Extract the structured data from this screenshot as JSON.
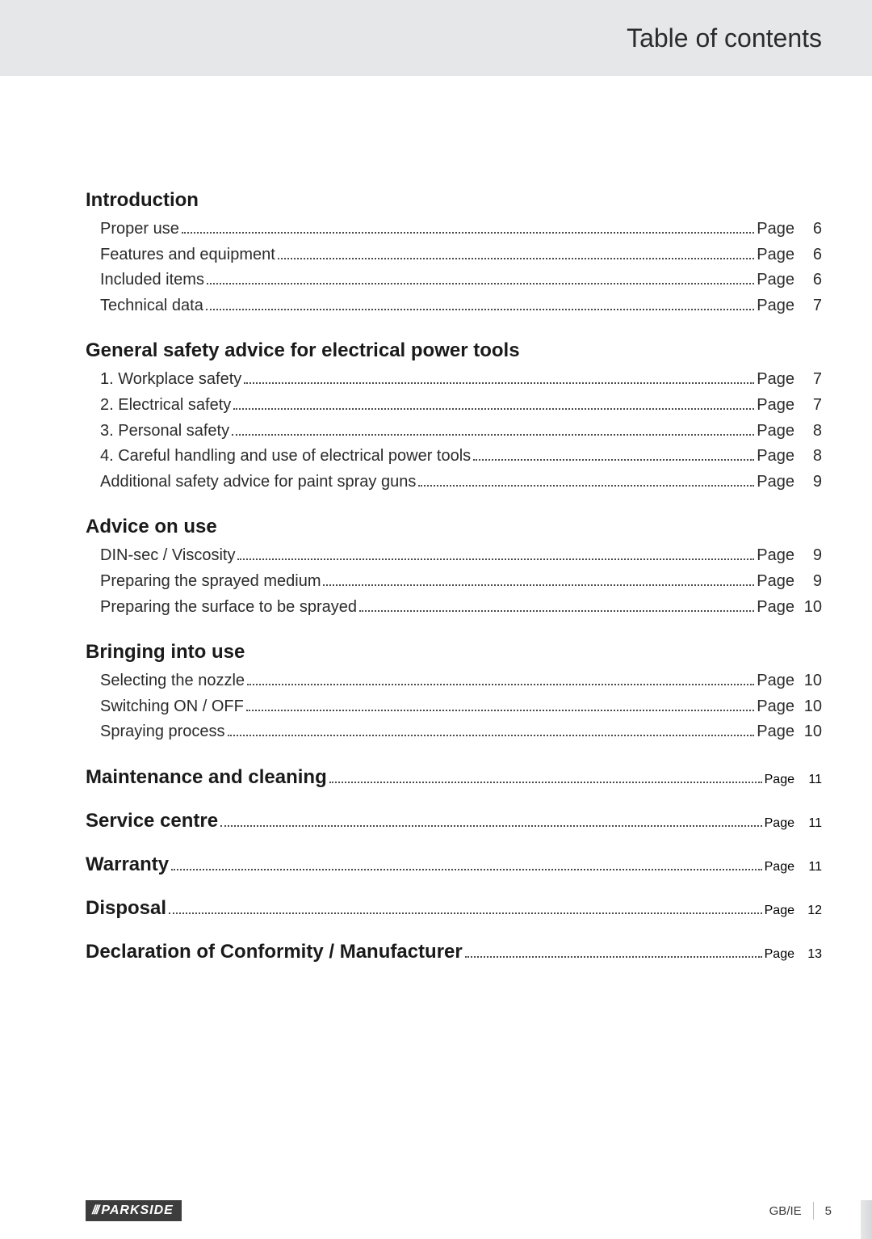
{
  "header": {
    "title": "Table of contents"
  },
  "page_word": "Page",
  "sections": {
    "intro": {
      "heading": "Introduction",
      "items": [
        {
          "label": "Proper use",
          "page": "6"
        },
        {
          "label": "Features and equipment",
          "page": "6"
        },
        {
          "label": "Included items",
          "page": "6"
        },
        {
          "label": "Technical data",
          "page": "7"
        }
      ]
    },
    "safety": {
      "heading": "General safety advice for electrical power tools",
      "items": [
        {
          "label": "1. Workplace safety",
          "page": "7"
        },
        {
          "label": "2. Electrical safety",
          "page": "7"
        },
        {
          "label": "3. Personal safety",
          "page": "8"
        },
        {
          "label": "4. Careful handling and use of electrical power tools",
          "page": "8"
        },
        {
          "label": "Additional safety advice for paint spray guns",
          "page": "9"
        }
      ]
    },
    "advice": {
      "heading": "Advice on use",
      "items": [
        {
          "label": "DIN-sec / Viscosity",
          "page": "9"
        },
        {
          "label": "Preparing the sprayed medium",
          "page": "9"
        },
        {
          "label": "Preparing the surface to be sprayed",
          "page": "10"
        }
      ]
    },
    "bringing": {
      "heading": "Bringing into use",
      "items": [
        {
          "label": "Selecting the nozzle",
          "page": "10"
        },
        {
          "label": "Switching ON / OFF",
          "page": "10"
        },
        {
          "label": "Spraying process",
          "page": "10"
        }
      ]
    },
    "maintenance": {
      "heading": "Maintenance and cleaning",
      "page": "11"
    },
    "service": {
      "heading": "Service centre",
      "page": "11"
    },
    "warranty": {
      "heading": "Warranty",
      "page": "11"
    },
    "disposal": {
      "heading": "Disposal",
      "page": "12"
    },
    "declaration": {
      "heading": "Declaration of Conformity / Manufacturer",
      "page": "13"
    }
  },
  "footer": {
    "brand_stripes": "///",
    "brand_name": "PARKSIDE",
    "locale": "GB/IE",
    "page_number": "5"
  },
  "style": {
    "header_bg": "#e6e7e8",
    "body_bg": "#ffffff",
    "text_color": "#2b2b2b",
    "heading_color": "#1a1a1a",
    "dot_color": "#4a4a4a",
    "brand_bg": "#3d3d3d",
    "heading_fontsize_pt": 18,
    "body_fontsize_pt": 15
  }
}
